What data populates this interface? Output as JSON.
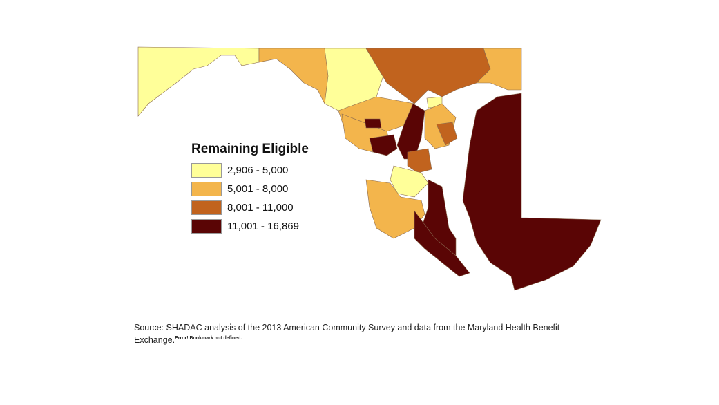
{
  "legend": {
    "title": "Remaining Eligible",
    "items": [
      {
        "label": "2,906 - 5,000",
        "color": "#ffff99"
      },
      {
        "label": "5,001 - 8,000",
        "color": "#f3b54c"
      },
      {
        "label": "8,001 - 11,000",
        "color": "#c1631e"
      },
      {
        "label": "11,001 - 16,869",
        "color": "#5a0505"
      }
    ]
  },
  "source": {
    "text": "Source: SHADAC analysis of the 2013 American Community Survey and data from the Maryland Health Benefit Exchange.",
    "error_note": "Error! Bookmark not defined."
  }
}
